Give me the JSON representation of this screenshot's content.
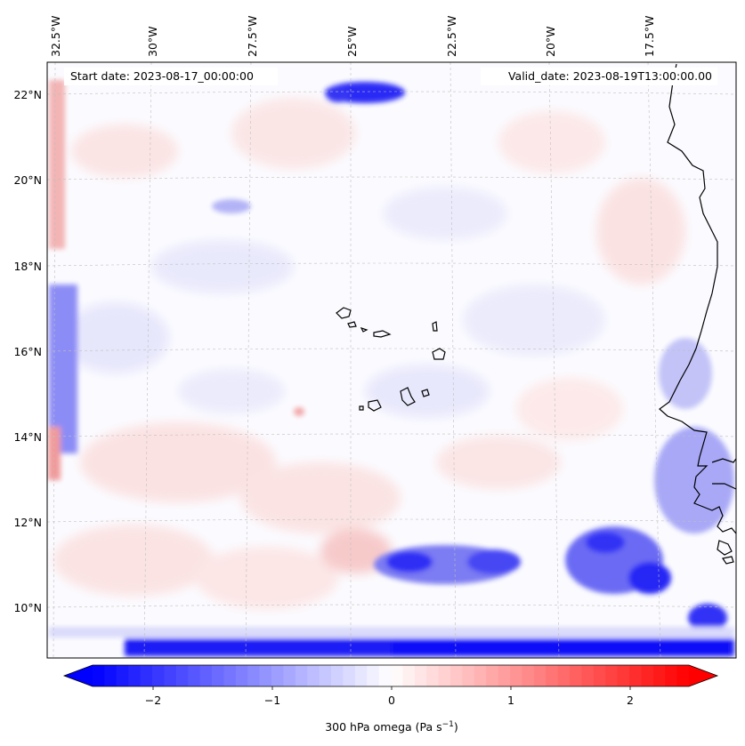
{
  "map": {
    "header": {
      "start_label": "Start date: 2023-08-17_00:00:00",
      "valid_label": "Valid_date: 2023-08-19T13:00:00.00"
    },
    "lon_labels": [
      "32.5°W",
      "30°W",
      "27.5°W",
      "25°W",
      "22.5°W",
      "20°W",
      "17.5°W"
    ],
    "lat_labels": [
      "22°N",
      "20°N",
      "18°N",
      "16°N",
      "14°N",
      "12°N",
      "10°N"
    ],
    "colorbar": {
      "ticks": [
        "−2",
        "−1",
        "0",
        "1",
        "2"
      ],
      "label": "300 hPa omega (Pa s",
      "label_sup": "−1",
      "label_end": ")",
      "vmin": -2.5,
      "vmax": 2.5,
      "negative_color": "#0000ff",
      "positive_color": "#ff0000",
      "center_color": "#ffffff"
    }
  }
}
